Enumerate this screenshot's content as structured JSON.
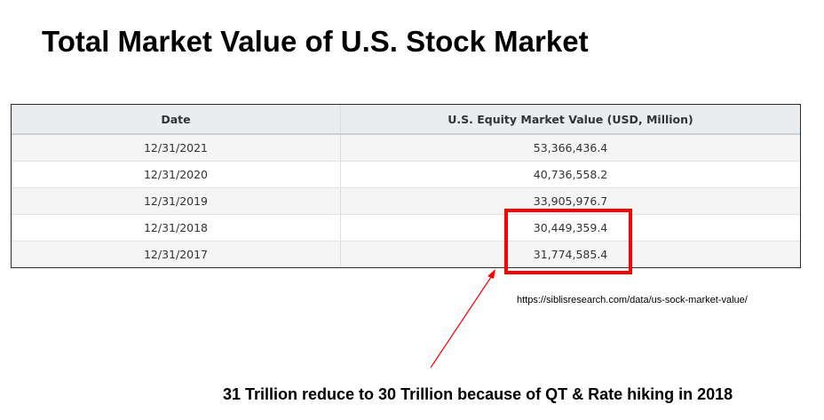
{
  "title": "Total Market Value of U.S. Stock Market",
  "table": {
    "headers": [
      "Date",
      "U.S. Equity Market Value (USD, Million)"
    ],
    "rows": [
      [
        "12/31/2021",
        "53,366,436.4"
      ],
      [
        "12/31/2020",
        "40,736,558.2"
      ],
      [
        "12/31/2019",
        "33,905,976.7"
      ],
      [
        "12/31/2018",
        "30,449,359.4"
      ],
      [
        "12/31/2017",
        "31,774,585.4"
      ]
    ]
  },
  "source": "https://siblisresearch.com/data/us-sock-market-value/",
  "annotation": "31 Trillion reduce to 30 Trillion because of QT & Rate hiking in 2018",
  "colors": {
    "highlight": "#ff0000",
    "arrow": "#ff0000",
    "header_bg": "#e9edf0"
  }
}
